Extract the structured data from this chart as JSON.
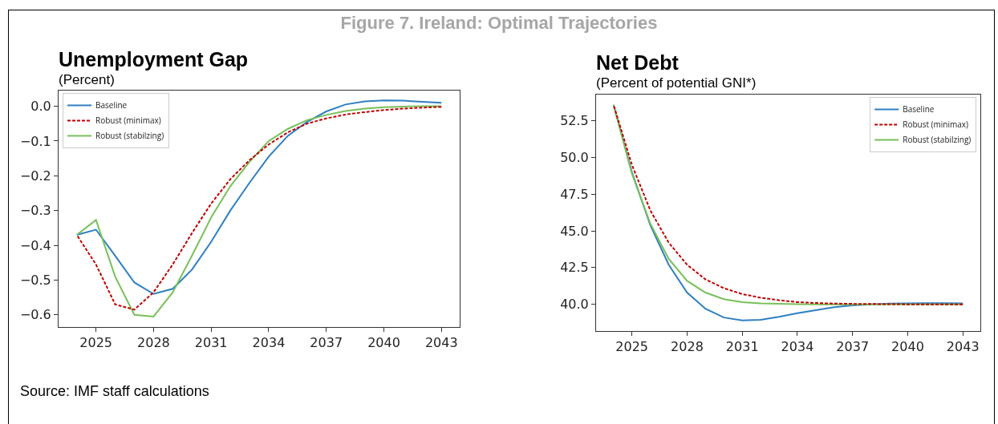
{
  "chart_data": [
    {
      "type": "line",
      "title": "Unemployment Gap",
      "subtitle": "(Percent)",
      "annotations": [
        "Figure 7. Ireland: Optimal Trajectories",
        "Source: IMF staff calculations"
      ],
      "x": [
        2024,
        2025,
        2026,
        2027,
        2028,
        2029,
        2030,
        2031,
        2032,
        2033,
        2034,
        2035,
        2036,
        2037,
        2038,
        2039,
        2040,
        2041,
        2042,
        2043
      ],
      "series": [
        {
          "name": "Baseline",
          "color": "#2f7fc1",
          "line_style": "solid",
          "values": [
            -0.37,
            -0.355,
            -0.43,
            -0.507,
            -0.54,
            -0.525,
            -0.47,
            -0.39,
            -0.3,
            -0.22,
            -0.145,
            -0.085,
            -0.045,
            -0.015,
            0.005,
            0.014,
            0.017,
            0.016,
            0.013,
            0.01
          ]
        },
        {
          "name": "Robust (minimax)",
          "color": "#c00000",
          "line_style": "dashed",
          "values": [
            -0.37,
            -0.455,
            -0.57,
            -0.585,
            -0.535,
            -0.455,
            -0.365,
            -0.28,
            -0.21,
            -0.155,
            -0.11,
            -0.075,
            -0.05,
            -0.035,
            -0.024,
            -0.017,
            -0.011,
            -0.007,
            -0.004,
            -0.002
          ]
        },
        {
          "name": "Robust (stabilzing)",
          "color": "#77c05a",
          "line_style": "solid",
          "values": [
            -0.37,
            -0.327,
            -0.49,
            -0.6,
            -0.605,
            -0.535,
            -0.43,
            -0.32,
            -0.23,
            -0.16,
            -0.1,
            -0.065,
            -0.04,
            -0.025,
            -0.014,
            -0.007,
            -0.003,
            -0.001,
            0,
            0
          ]
        }
      ],
      "xlim": [
        2023.05,
        2043.95
      ],
      "xticks": [
        2025,
        2028,
        2031,
        2034,
        2037,
        2040,
        2043
      ],
      "ylim": [
        -0.635,
        0.045
      ],
      "yticks": [
        {
          "value": -0.6,
          "label": "−0.6"
        },
        {
          "value": -0.5,
          "label": "−0.5"
        },
        {
          "value": -0.4,
          "label": "−0.4"
        },
        {
          "value": -0.3,
          "label": "−0.3"
        },
        {
          "value": -0.2,
          "label": "−0.2"
        },
        {
          "value": -0.1,
          "label": "−0.1"
        },
        {
          "value": 0,
          "label": "0.0"
        }
      ],
      "grid": false,
      "legend": "top left",
      "marker": "none"
    },
    {
      "type": "line",
      "title": "Net Debt",
      "subtitle": "(Percent of potential GNI*)",
      "x": [
        2024,
        2025,
        2026,
        2027,
        2028,
        2029,
        2030,
        2031,
        2032,
        2033,
        2034,
        2035,
        2036,
        2037,
        2038,
        2039,
        2040,
        2041,
        2042,
        2043
      ],
      "series": [
        {
          "name": "Baseline",
          "color": "#2f7fc1",
          "line_style": "solid",
          "values": [
            53.6,
            49.0,
            45.4,
            42.7,
            40.8,
            39.7,
            39.1,
            38.9,
            38.95,
            39.15,
            39.4,
            39.6,
            39.8,
            39.93,
            40.0,
            40.05,
            40.07,
            40.08,
            40.08,
            40.07
          ]
        },
        {
          "name": "Robust (minimax)",
          "color": "#c00000",
          "line_style": "dashed",
          "values": [
            53.6,
            49.5,
            46.4,
            44.2,
            42.7,
            41.7,
            41.1,
            40.7,
            40.45,
            40.28,
            40.15,
            40.09,
            40.05,
            40.03,
            40.02,
            40.01,
            40.0,
            40.0,
            40.0,
            40.0
          ]
        },
        {
          "name": "Robust (stabilzing)",
          "color": "#77c05a",
          "line_style": "solid",
          "values": [
            53.6,
            48.9,
            45.5,
            43.1,
            41.6,
            40.8,
            40.35,
            40.15,
            40.07,
            40.03,
            40.01,
            40.0,
            40.0,
            40.0,
            40.0,
            40.0,
            40.0,
            40.0,
            40.0,
            40.0
          ]
        }
      ],
      "xlim": [
        2023.05,
        2043.95
      ],
      "xticks": [
        2025,
        2028,
        2031,
        2034,
        2037,
        2040,
        2043
      ],
      "ylim": [
        38.18,
        54.29
      ],
      "yticks": [
        {
          "value": 40,
          "label": "40.0"
        },
        {
          "value": 42.5,
          "label": "42.5"
        },
        {
          "value": 45,
          "label": "45.0"
        },
        {
          "value": 47.5,
          "label": "47.5"
        },
        {
          "value": 50,
          "label": "50.0"
        },
        {
          "value": 52.5,
          "label": "52.5"
        }
      ],
      "grid": false,
      "legend": "top right",
      "marker": "none"
    }
  ]
}
